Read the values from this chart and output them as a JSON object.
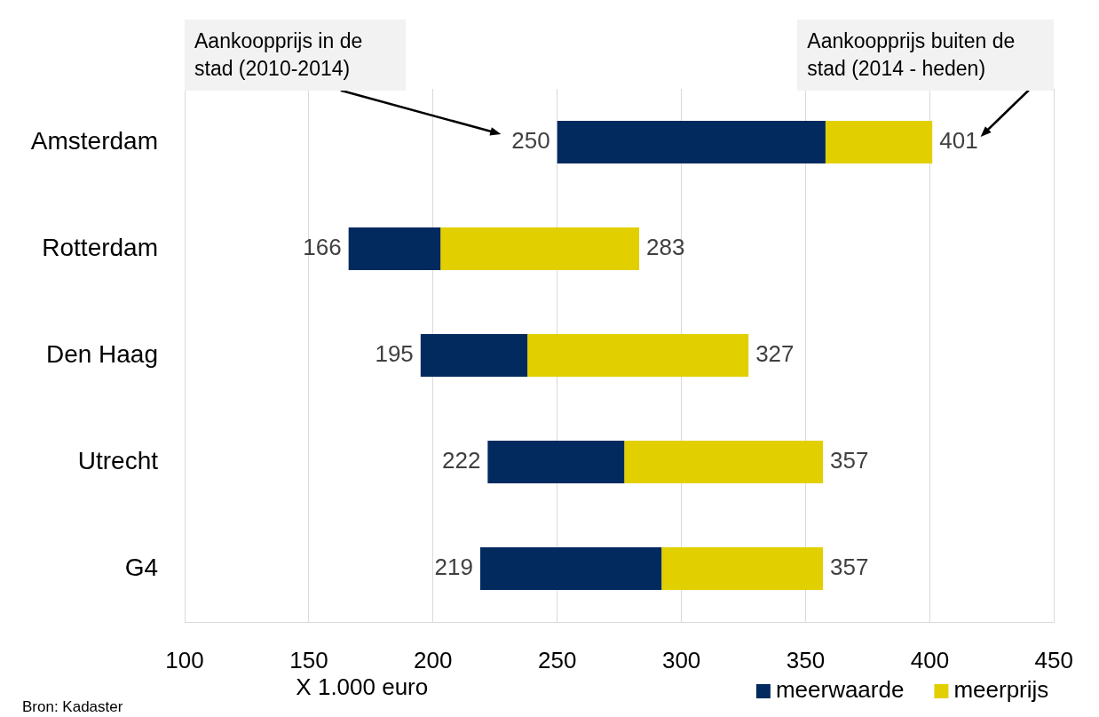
{
  "chart_data": {
    "type": "bar",
    "orientation": "horizontal",
    "categories": [
      "Amsterdam",
      "Rotterdam",
      "Den Haag",
      "Utrecht",
      "G4"
    ],
    "series": [
      {
        "name": "meerwaarde",
        "color": "#022a5e",
        "base": [
          250,
          166,
          195,
          222,
          219
        ],
        "values": [
          108,
          37,
          43,
          55,
          73
        ]
      },
      {
        "name": "meerprijs",
        "color": "#e2cf00",
        "base": [
          358,
          203,
          238,
          277,
          292
        ],
        "values": [
          43,
          80,
          89,
          80,
          65
        ]
      }
    ],
    "xlim": [
      100,
      450
    ],
    "xticks": [
      100,
      150,
      200,
      250,
      300,
      350,
      400,
      450
    ],
    "xlabel": "X 1.000 euro",
    "grid": "x",
    "legend": "bottom right",
    "annotations": [
      {
        "text": "250",
        "x": 250,
        "y": "Amsterdam"
      },
      {
        "text": "166",
        "x": 166,
        "y": "Rotterdam"
      },
      {
        "text": "195",
        "x": 195,
        "y": "Den Haag"
      },
      {
        "text": "222",
        "x": 222,
        "y": "Utrecht"
      },
      {
        "text": "219",
        "x": 219,
        "y": "G4"
      },
      {
        "text": "401",
        "x": 401,
        "y": "Amsterdam"
      },
      {
        "text": "283",
        "x": 283,
        "y": "Rotterdam"
      },
      {
        "text": "327",
        "x": 327,
        "y": "Den Haag"
      },
      {
        "text": "357",
        "x": 357,
        "y": "Utrecht"
      },
      {
        "text": "357",
        "x": 357,
        "y": "G4"
      },
      "Aankoopprijs in de stad (2010-2014)",
      {
        "text": "Aankoopprijs buiten de stad (2014 - heden)",
        "x": 401,
        "y": "Amsterdam"
      },
      "Bron: Kadaster"
    ]
  }
}
